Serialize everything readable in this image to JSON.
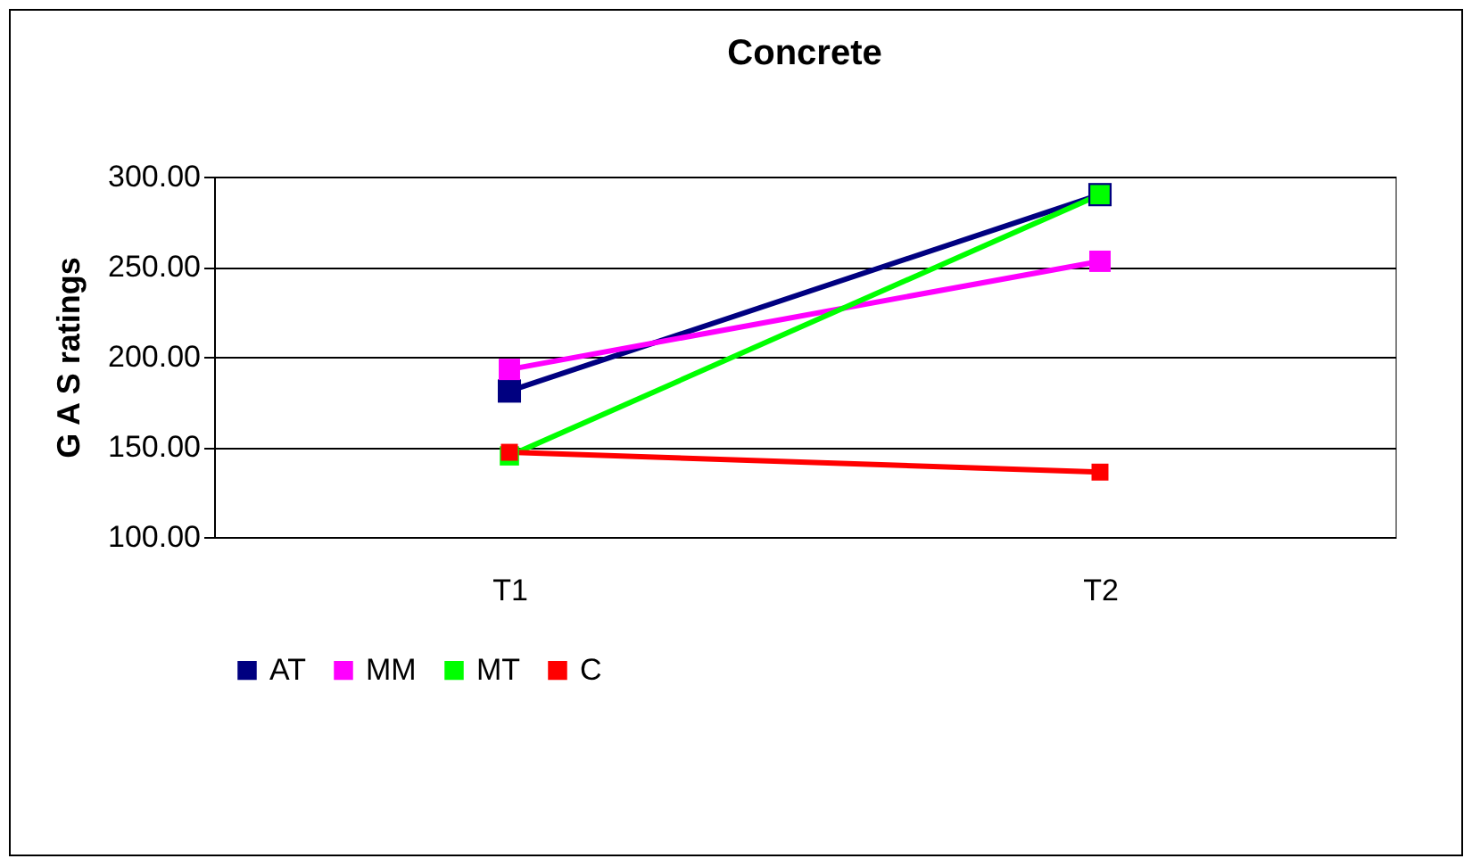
{
  "chart_data": {
    "type": "line",
    "title": "Concrete",
    "ylabel": "G A S ratings",
    "categories": [
      "T1",
      "T2"
    ],
    "series": [
      {
        "name": "AT",
        "color": "#000080",
        "values": [
          181,
          290
        ]
      },
      {
        "name": "MM",
        "color": "#ff00ff",
        "values": [
          193,
          253
        ]
      },
      {
        "name": "MT",
        "color": "#00ff00",
        "values": [
          145,
          290
        ]
      },
      {
        "name": "C",
        "color": "#ff0000",
        "values": [
          147,
          136
        ]
      }
    ],
    "ylim": [
      100,
      300
    ],
    "yticks": [
      {
        "value": 100,
        "label": "100.00"
      },
      {
        "value": 150,
        "label": "150.00"
      },
      {
        "value": 200,
        "label": "200.00"
      },
      {
        "value": 250,
        "label": "250.00"
      },
      {
        "value": 300,
        "label": "300.00"
      }
    ],
    "grid": "y",
    "legend": "bottom",
    "marker": "square",
    "line_style": "solid"
  }
}
